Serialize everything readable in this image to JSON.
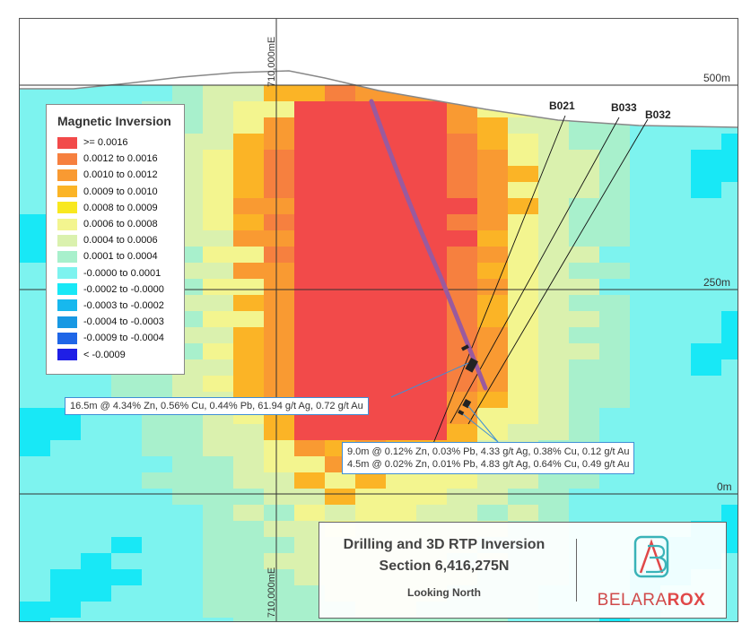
{
  "legend": {
    "title": "Magnetic Inversion",
    "classes": [
      {
        "label": ">= 0.0016",
        "color": "#f24a4a"
      },
      {
        "label": "0.0012 to 0.0016",
        "color": "#f6803f"
      },
      {
        "label": "0.0010 to 0.0012",
        "color": "#f99a32"
      },
      {
        "label": "0.0009 to 0.0010",
        "color": "#fbb426"
      },
      {
        "label": "0.0008 to 0.0009",
        "color": "#f8e81f"
      },
      {
        "label": "0.0006 to 0.0008",
        "color": "#f3f58f"
      },
      {
        "label": "0.0004 to 0.0006",
        "color": "#daf1ae"
      },
      {
        "label": "0.0001 to 0.0004",
        "color": "#a8f0cc"
      },
      {
        "label": "-0.0000 to 0.0001",
        "color": "#7df3ef"
      },
      {
        "label": "-0.0002 to -0.0000",
        "color": "#18e8f6"
      },
      {
        "label": "-0.0003 to -0.0002",
        "color": "#17b8ee"
      },
      {
        "label": "-0.0004 to -0.0003",
        "color": "#1898e3"
      },
      {
        "label": "-0.0009 to -0.0004",
        "color": "#1f66e7"
      },
      {
        "label": "< -0.0009",
        "color": "#1f1fe6"
      }
    ]
  },
  "elevations": {
    "top": "500m",
    "middle": "250m",
    "bottom": "0m"
  },
  "easting": {
    "top": "710,000mE",
    "bottom": "710,000mE"
  },
  "drillholes": [
    "B021",
    "B033",
    "B032"
  ],
  "intercepts": {
    "upper": "16.5m @ 4.34% Zn, 0.56% Cu, 0.44% Pb, 61.94 g/t Ag, 0.72 g/t Au",
    "lower_1": "9.0m @ 0.12% Zn, 0.03% Pb, 4.33 g/t Ag, 0.38% Cu, 0.12 g/t Au",
    "lower_2": "4.5m @ 0.02% Zn, 0.01% Pb, 4.83 g/t Ag, 0.64% Cu, 0.49 g/t Au"
  },
  "title": {
    "line1": "Drilling and 3D RTP Inversion",
    "line2": "Section 6,416,275N",
    "line3": "Looking North"
  },
  "logo": {
    "word_light": "BELARA",
    "word_bold": "ROX"
  },
  "colors": {
    "trace": "#9a5a9e",
    "callout_border": "#3f8fd6",
    "grid": "#333333",
    "topo": "#888888"
  }
}
